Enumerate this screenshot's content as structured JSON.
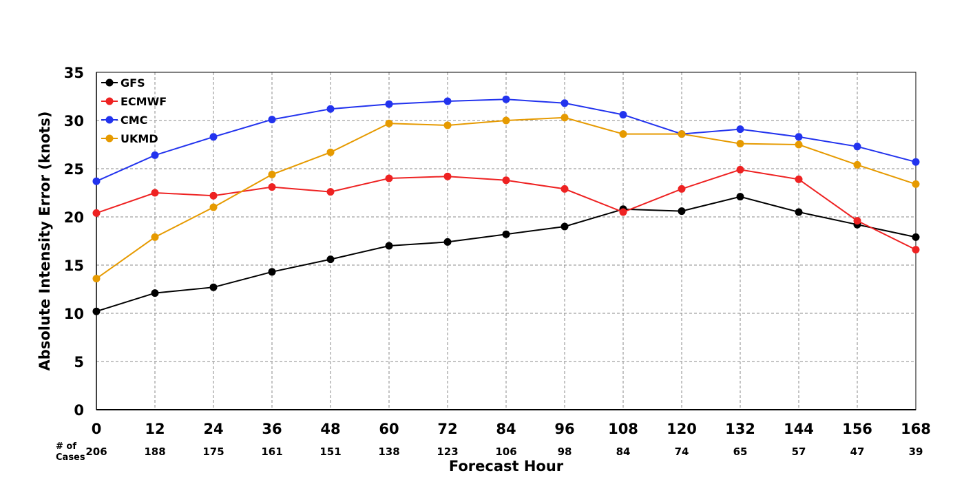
{
  "chart_data": {
    "type": "line",
    "title": "",
    "xlabel": "Forecast Hour",
    "ylabel": "Absolute Intensity Error (knots)",
    "x": [
      0,
      12,
      24,
      36,
      48,
      60,
      72,
      84,
      96,
      108,
      120,
      132,
      144,
      156,
      168
    ],
    "xlim": [
      0,
      168
    ],
    "ylim": [
      0,
      35
    ],
    "yticks": [
      0,
      5,
      10,
      15,
      20,
      25,
      30,
      35
    ],
    "grid": true,
    "legend_position": "top-left",
    "cases_label": "# of Cases",
    "cases": [
      206,
      188,
      175,
      161,
      151,
      138,
      123,
      106,
      98,
      84,
      74,
      65,
      57,
      47,
      39
    ],
    "series": [
      {
        "name": "GFS",
        "color": "#000000",
        "values": [
          10.2,
          12.1,
          12.7,
          14.3,
          15.6,
          17.0,
          17.4,
          18.2,
          19.0,
          20.8,
          20.6,
          22.1,
          20.5,
          19.2,
          17.9
        ]
      },
      {
        "name": "ECMWF",
        "color": "#ee2222",
        "values": [
          20.4,
          22.5,
          22.2,
          23.1,
          22.6,
          24.0,
          24.2,
          23.8,
          22.9,
          20.5,
          22.9,
          24.9,
          23.9,
          19.6,
          16.6
        ]
      },
      {
        "name": "CMC",
        "color": "#2233ee",
        "values": [
          23.7,
          26.4,
          28.3,
          30.1,
          31.2,
          31.7,
          32.0,
          32.2,
          31.8,
          30.6,
          28.6,
          29.1,
          28.3,
          27.3,
          25.7
        ]
      },
      {
        "name": "UKMD",
        "color": "#e69a00",
        "values": [
          13.6,
          17.9,
          21.0,
          24.4,
          26.7,
          29.7,
          29.5,
          30.0,
          30.3,
          28.6,
          28.6,
          27.6,
          27.5,
          25.4,
          23.4
        ]
      }
    ]
  }
}
